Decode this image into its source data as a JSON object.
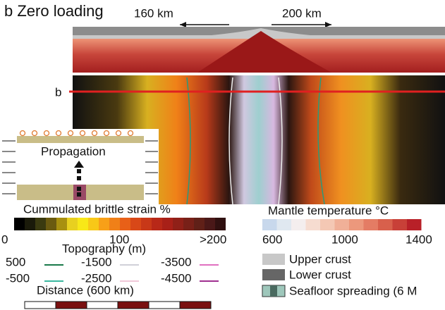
{
  "panel_title": "b Zero loading",
  "section": {
    "left_distance": "160 km",
    "right_distance": "200 km",
    "profile_label": "b"
  },
  "inset": {
    "label": "Propagation"
  },
  "strain_bar": {
    "title": "Cummulated brittle strain %",
    "ticks": [
      "0",
      "100",
      ">200"
    ]
  },
  "topography": {
    "title": "Topography (m)",
    "entries": [
      "500",
      "-500",
      "-1500",
      "-2500",
      "-3500",
      "-4500"
    ]
  },
  "distance": {
    "title": "Distance (600 km)"
  },
  "temperature_bar": {
    "title": "Mantle temperature °C",
    "ticks": [
      "600",
      "1000",
      "1400"
    ]
  },
  "materials": [
    "Upper crust",
    "Lower crust",
    "Seafloor spreading (6 M"
  ]
}
